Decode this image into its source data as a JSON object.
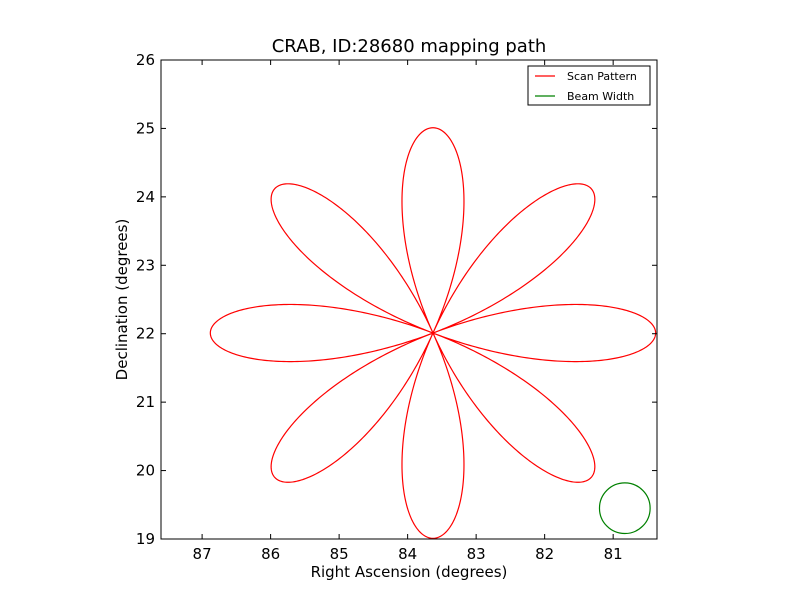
{
  "chart_data": {
    "type": "line",
    "title": "CRAB, ID:28680 mapping path",
    "xlabel": "Right Ascension (degrees)",
    "ylabel": "Declination (degrees)",
    "xlim": [
      87.6,
      80.36
    ],
    "ylim": [
      19,
      26
    ],
    "x_inverted": true,
    "xticks": [
      87,
      86,
      85,
      84,
      83,
      82,
      81
    ],
    "yticks": [
      19,
      20,
      21,
      22,
      23,
      24,
      25,
      26
    ],
    "xtick_labels": [
      "87",
      "86",
      "85",
      "84",
      "83",
      "82",
      "81"
    ],
    "ytick_labels": [
      "19",
      "20",
      "21",
      "22",
      "23",
      "24",
      "25",
      "26"
    ],
    "grid": false,
    "legend_position": "top-right",
    "series": [
      {
        "name": "Scan Pattern",
        "color": "#ff0000",
        "kind": "rose-curve",
        "center": [
          83.63,
          22.01
        ],
        "ra_amplitude_deg": 3.25,
        "dec_amplitude_deg": 3.0,
        "petals": 8
      },
      {
        "name": "Beam Width",
        "color": "#008000",
        "kind": "circle",
        "center": [
          80.83,
          19.45
        ],
        "radius_deg": 0.37
      }
    ]
  }
}
